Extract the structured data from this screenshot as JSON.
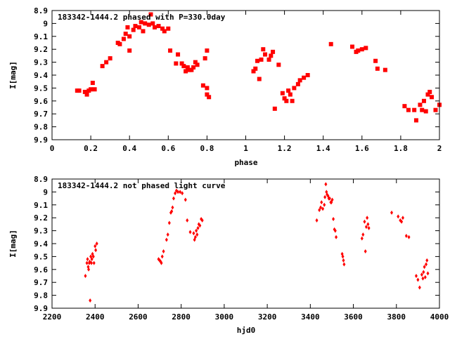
{
  "chart_data": [
    {
      "type": "scatter",
      "title": "183342-1444.2 phased with P=330.0day",
      "xlabel": "phase",
      "ylabel": "I[mag]",
      "xlim": [
        0,
        2
      ],
      "ylim": [
        8.9,
        9.9
      ],
      "y_inverted": true,
      "grid": false,
      "marker_color": "#ff0000",
      "x_ticks": [
        "0",
        "0.2",
        "0.4",
        "0.6",
        "0.8",
        "1",
        "1.2",
        "1.4",
        "1.6",
        "1.8",
        "2"
      ],
      "y_ticks": [
        "8.9",
        "9",
        "9.1",
        "9.2",
        "9.3",
        "9.4",
        "9.5",
        "9.6",
        "9.7",
        "9.8",
        "9.9"
      ],
      "x": [
        0.13,
        0.14,
        0.17,
        0.18,
        0.19,
        0.2,
        0.21,
        0.22,
        0.26,
        0.28,
        0.3,
        0.34,
        0.35,
        0.37,
        0.38,
        0.39,
        0.4,
        0.4,
        0.42,
        0.43,
        0.45,
        0.46,
        0.47,
        0.48,
        0.5,
        0.51,
        0.52,
        0.53,
        0.55,
        0.57,
        0.58,
        0.6,
        0.61,
        0.64,
        0.65,
        0.67,
        0.68,
        0.69,
        0.7,
        0.71,
        0.72,
        0.73,
        0.74,
        0.75,
        0.78,
        0.79,
        0.8,
        0.8,
        0.8,
        0.81,
        1.04,
        1.05,
        1.06,
        1.07,
        1.08,
        1.09,
        1.1,
        1.12,
        1.13,
        1.14,
        1.15,
        1.17,
        1.19,
        1.2,
        1.21,
        1.22,
        1.23,
        1.24,
        1.25,
        1.27,
        1.28,
        1.3,
        1.32,
        1.44,
        1.55,
        1.57,
        1.58,
        1.6,
        1.62,
        1.67,
        1.68,
        1.72,
        1.82,
        1.84,
        1.87,
        1.88,
        1.9,
        1.91,
        1.92,
        1.93,
        1.94,
        1.95,
        1.96,
        1.98,
        2.0
      ],
      "y": [
        9.52,
        9.52,
        9.53,
        9.55,
        9.52,
        9.51,
        9.46,
        9.51,
        9.33,
        9.3,
        9.27,
        9.15,
        9.16,
        9.12,
        9.08,
        9.03,
        9.21,
        9.1,
        9.05,
        9.02,
        9.03,
        8.99,
        9.06,
        9.0,
        9.01,
        8.93,
        9.0,
        9.03,
        9.02,
        9.04,
        9.06,
        9.04,
        9.21,
        9.31,
        9.24,
        9.31,
        9.33,
        9.37,
        9.34,
        9.36,
        9.36,
        9.34,
        9.3,
        9.32,
        9.48,
        9.27,
        9.21,
        9.5,
        9.55,
        9.57,
        9.37,
        9.35,
        9.29,
        9.43,
        9.28,
        9.2,
        9.24,
        9.28,
        9.25,
        9.22,
        9.66,
        9.32,
        9.54,
        9.58,
        9.6,
        9.52,
        9.55,
        9.6,
        9.5,
        9.47,
        9.44,
        9.42,
        9.4,
        9.16,
        9.18,
        9.22,
        9.21,
        9.2,
        9.19,
        9.29,
        9.35,
        9.36,
        9.64,
        9.67,
        9.67,
        9.75,
        9.63,
        9.67,
        9.6,
        9.68,
        9.55,
        9.53,
        9.57,
        9.67,
        9.63
      ]
    },
    {
      "type": "scatter",
      "title": "183342-1444.2 not phased light curve",
      "xlabel": "hjd0",
      "ylabel": "I[mag]",
      "xlim": [
        2200,
        4000
      ],
      "ylim": [
        8.9,
        9.9
      ],
      "y_inverted": true,
      "grid": false,
      "marker_color": "#ff0000",
      "x_ticks": [
        "2200",
        "2400",
        "2600",
        "2800",
        "3000",
        "3200",
        "3400",
        "3600",
        "3800",
        "4000"
      ],
      "y_ticks": [
        "8.9",
        "9",
        "9.1",
        "9.2",
        "9.3",
        "9.4",
        "9.5",
        "9.6",
        "9.7",
        "9.8",
        "9.9"
      ],
      "x": [
        2355,
        2362,
        2365,
        2368,
        2370,
        2373,
        2375,
        2377,
        2380,
        2383,
        2385,
        2388,
        2392,
        2395,
        2400,
        2403,
        2408,
        2695,
        2700,
        2705,
        2708,
        2712,
        2718,
        2732,
        2738,
        2745,
        2752,
        2756,
        2760,
        2765,
        2772,
        2778,
        2785,
        2795,
        2805,
        2820,
        2828,
        2842,
        2858,
        2862,
        2866,
        2870,
        2874,
        2878,
        2882,
        2887,
        2893,
        2898,
        3430,
        3442,
        3448,
        3452,
        3458,
        3465,
        3468,
        3472,
        3475,
        3478,
        3482,
        3486,
        3490,
        3495,
        3498,
        3502,
        3507,
        3512,
        3516,
        3520,
        3548,
        3551,
        3554,
        3557,
        3640,
        3645,
        3652,
        3656,
        3660,
        3664,
        3668,
        3672,
        3778,
        3808,
        3818,
        3824,
        3830,
        3846,
        3858,
        3892,
        3900,
        3908,
        3918,
        3923,
        3926,
        3930,
        3934,
        3938,
        3942,
        3946
      ],
      "y": [
        9.65,
        9.55,
        9.52,
        9.58,
        9.6,
        9.55,
        9.54,
        9.84,
        9.5,
        9.55,
        9.52,
        9.48,
        9.5,
        9.55,
        9.42,
        9.45,
        9.4,
        9.52,
        9.53,
        9.54,
        9.55,
        9.5,
        9.46,
        9.37,
        9.33,
        9.24,
        9.16,
        9.15,
        9.12,
        9.05,
        9.01,
        8.99,
        9.0,
        9.0,
        9.01,
        9.06,
        9.22,
        9.31,
        9.32,
        9.37,
        9.35,
        9.3,
        9.33,
        9.28,
        9.25,
        9.26,
        9.21,
        9.22,
        9.22,
        9.14,
        9.12,
        9.08,
        9.13,
        9.1,
        9.04,
        8.94,
        9.0,
        9.02,
        9.03,
        9.05,
        9.05,
        9.08,
        9.08,
        9.06,
        9.21,
        9.29,
        9.3,
        9.35,
        9.48,
        9.5,
        9.53,
        9.56,
        9.36,
        9.33,
        9.23,
        9.46,
        9.27,
        9.2,
        9.25,
        9.28,
        9.16,
        9.19,
        9.22,
        9.23,
        9.2,
        9.34,
        9.35,
        9.65,
        9.68,
        9.74,
        9.64,
        9.67,
        9.62,
        9.58,
        9.66,
        9.56,
        9.53,
        9.63
      ]
    }
  ]
}
